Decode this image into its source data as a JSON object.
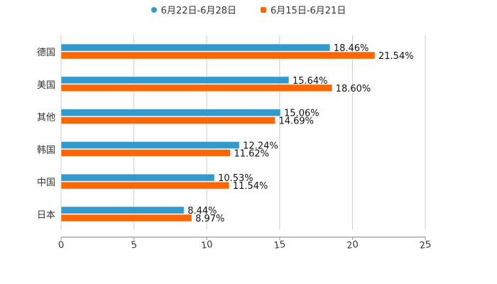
{
  "chart_data": {
    "type": "bar",
    "orientation": "horizontal",
    "categories": [
      "德国",
      "美国",
      "其他",
      "韩国",
      "中国",
      "日本"
    ],
    "series": [
      {
        "name": "6月22日-6月28日",
        "color": "#3399cc",
        "values": [
          18.46,
          15.64,
          15.06,
          12.24,
          10.53,
          8.44
        ],
        "labels": [
          "18.46%",
          "15.64%",
          "15.06%",
          "12.24%",
          "10.53%",
          "8.44%"
        ]
      },
      {
        "name": "6月15日-6月21日",
        "color": "#ff6600",
        "values": [
          21.54,
          18.6,
          14.69,
          11.62,
          11.54,
          8.97
        ],
        "labels": [
          "21.54%",
          "18.60%",
          "14.69%",
          "11.62%",
          "11.54%",
          "8.97%"
        ]
      }
    ],
    "xlim": [
      0,
      25
    ],
    "xticks": [
      "0",
      "5",
      "10",
      "15",
      "20",
      "25"
    ],
    "grid": true,
    "legend": "top-center"
  }
}
